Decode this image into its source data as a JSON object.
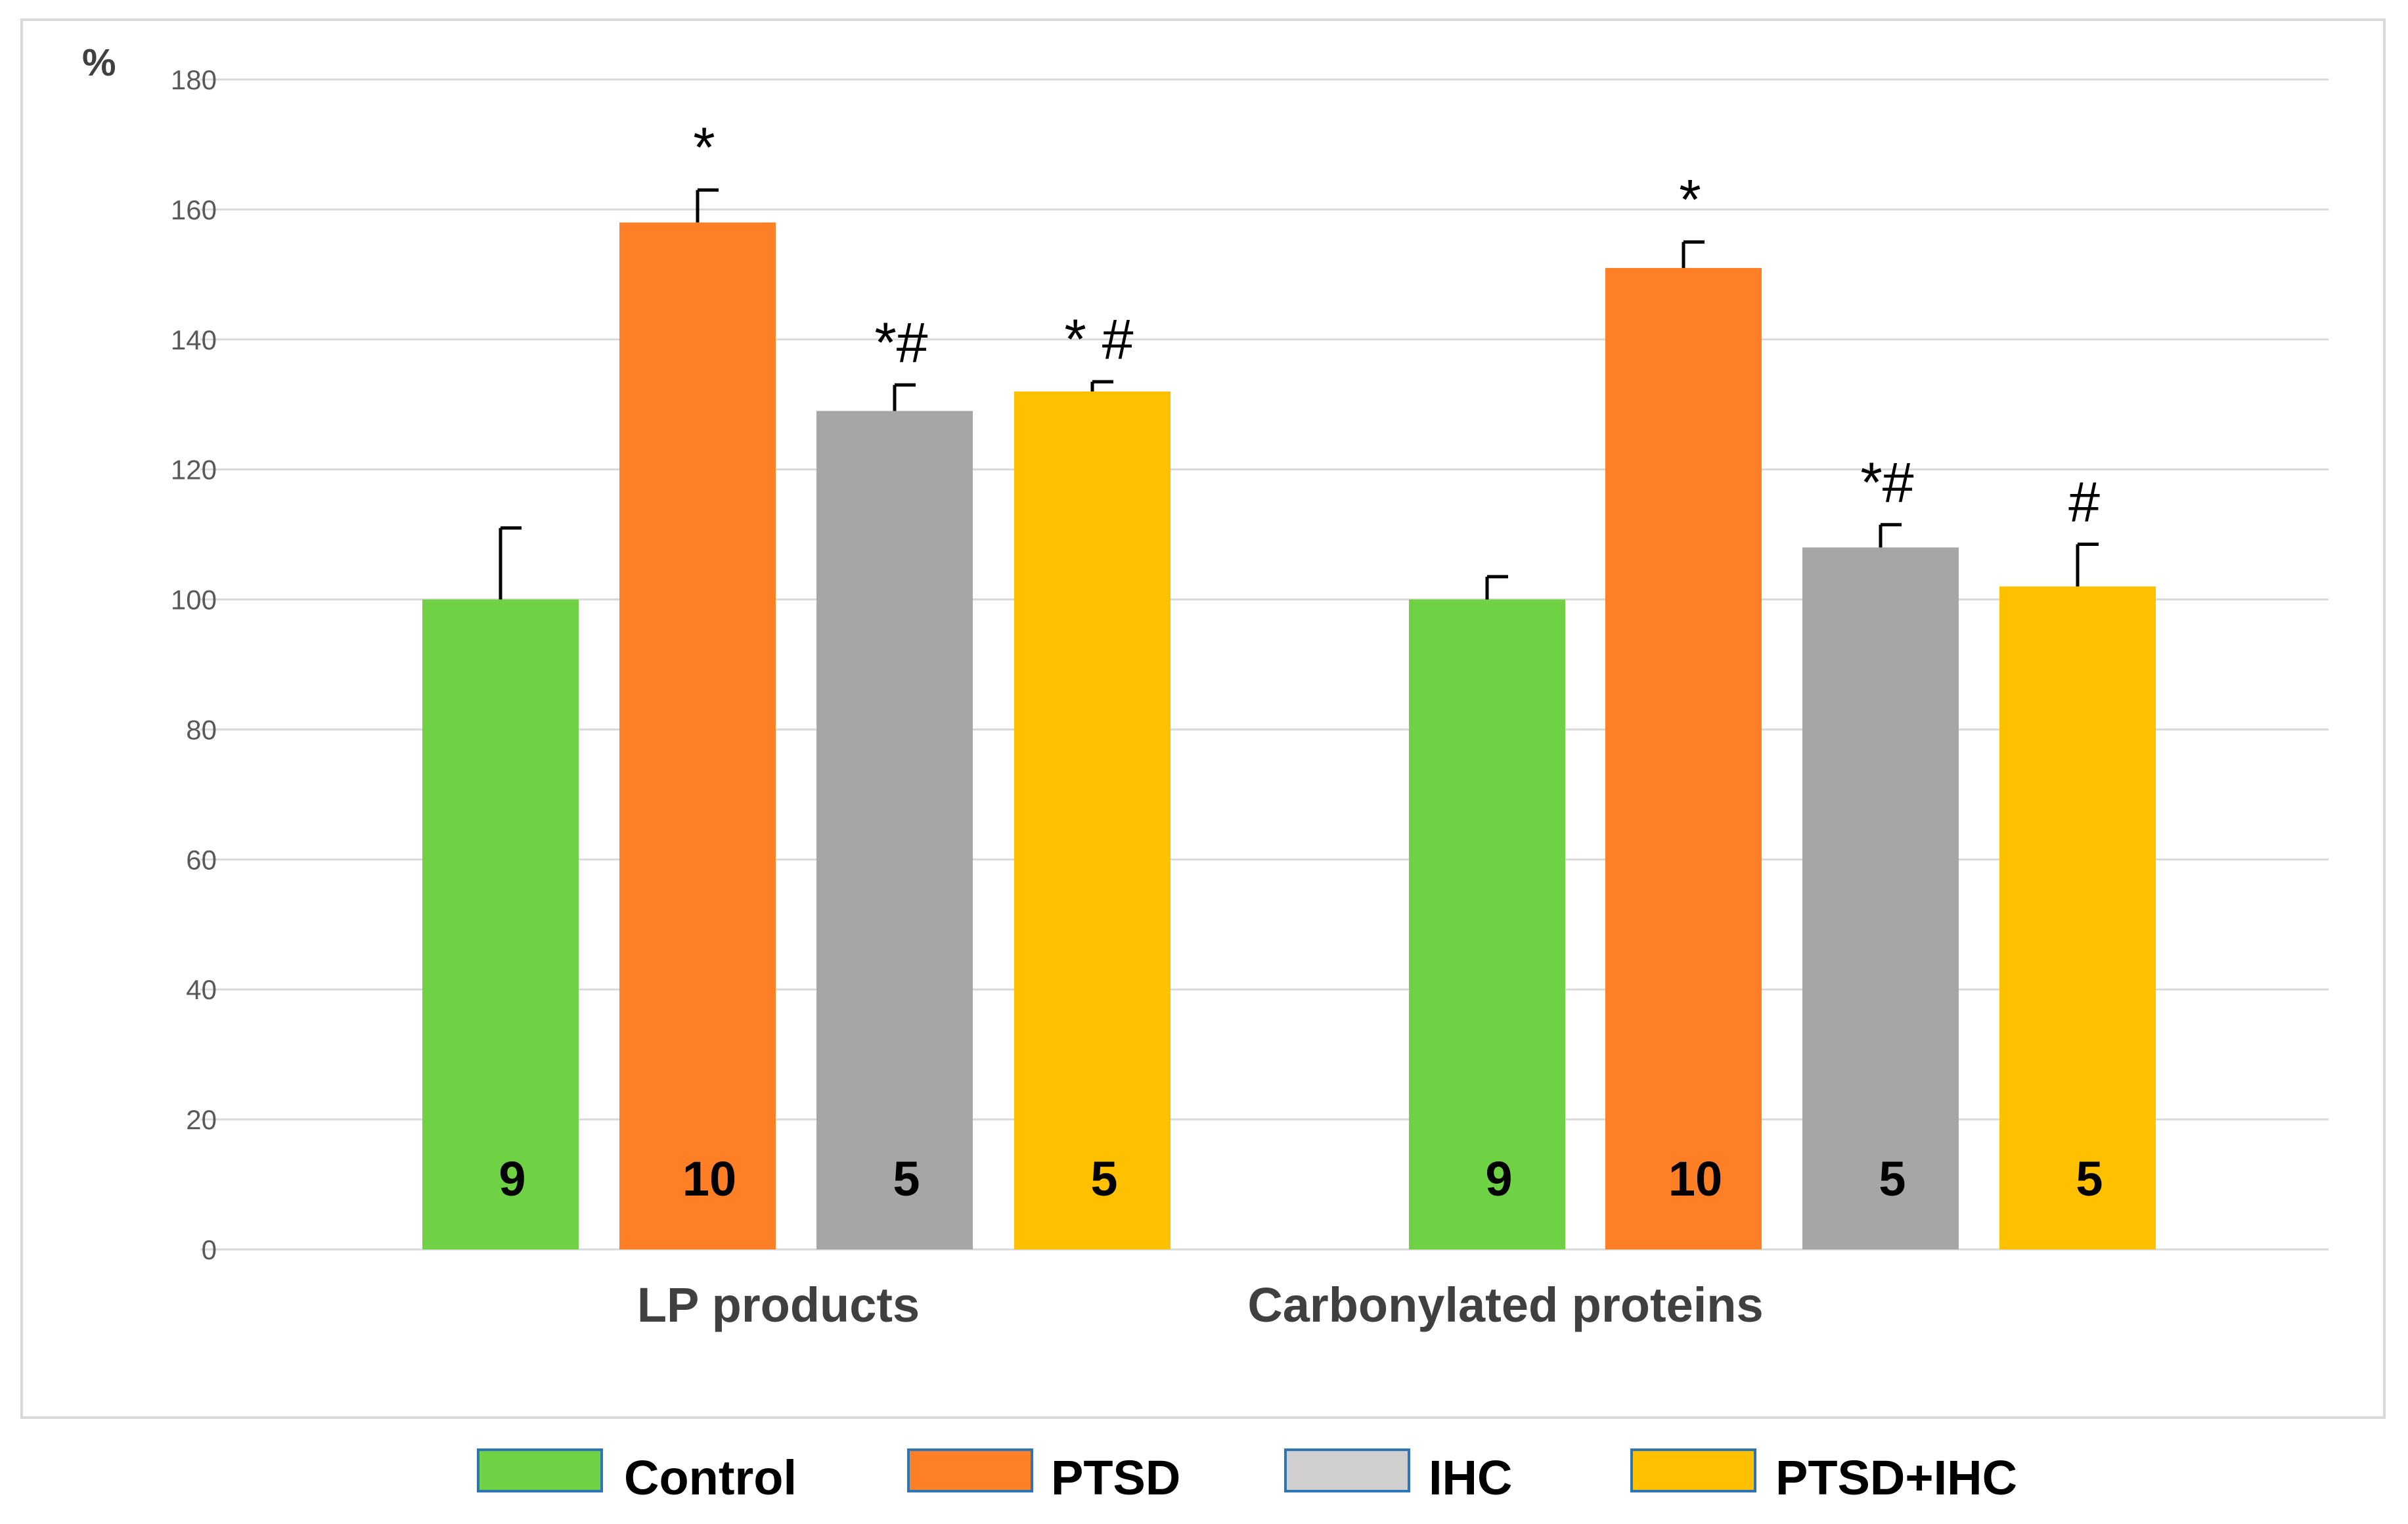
{
  "chart_data": {
    "type": "bar",
    "unit_label": "%",
    "ylim": [
      0,
      180
    ],
    "y_ticks": [
      0,
      20,
      40,
      60,
      80,
      100,
      120,
      140,
      160,
      180
    ],
    "grid": true,
    "legend_position": "bottom",
    "categories": [
      "LP products",
      "Carbonylated proteins"
    ],
    "series": [
      {
        "name": "Control",
        "color": "#6fd244",
        "values": [
          100,
          100
        ],
        "errors": [
          11,
          3.5
        ],
        "n": [
          "9",
          "9"
        ],
        "annotations": [
          "",
          ""
        ]
      },
      {
        "name": "PTSD",
        "color": "#ff7f27",
        "values": [
          158,
          151
        ],
        "errors": [
          5,
          4
        ],
        "n": [
          "10",
          "10"
        ],
        "annotations": [
          "*",
          "*"
        ]
      },
      {
        "name": "IHC",
        "color": "#a6a6a6",
        "values": [
          129,
          108
        ],
        "errors": [
          4,
          3.5
        ],
        "n": [
          "5",
          "5"
        ],
        "annotations": [
          "*#",
          "*#"
        ]
      },
      {
        "name": "PTSD+IHC",
        "color": "#ffc000",
        "values": [
          132,
          102
        ],
        "errors": [
          1.5,
          6.5
        ],
        "n": [
          "5",
          "5"
        ],
        "annotations": [
          "* #",
          "#"
        ]
      }
    ],
    "legend_colors": [
      "#6fd244",
      "#ff7f27",
      "#d0cece",
      "#ffc000"
    ],
    "legend_border": "#2e75b6",
    "grid_color": "#d9d9d9",
    "frame_color": "#d9d9d9"
  }
}
